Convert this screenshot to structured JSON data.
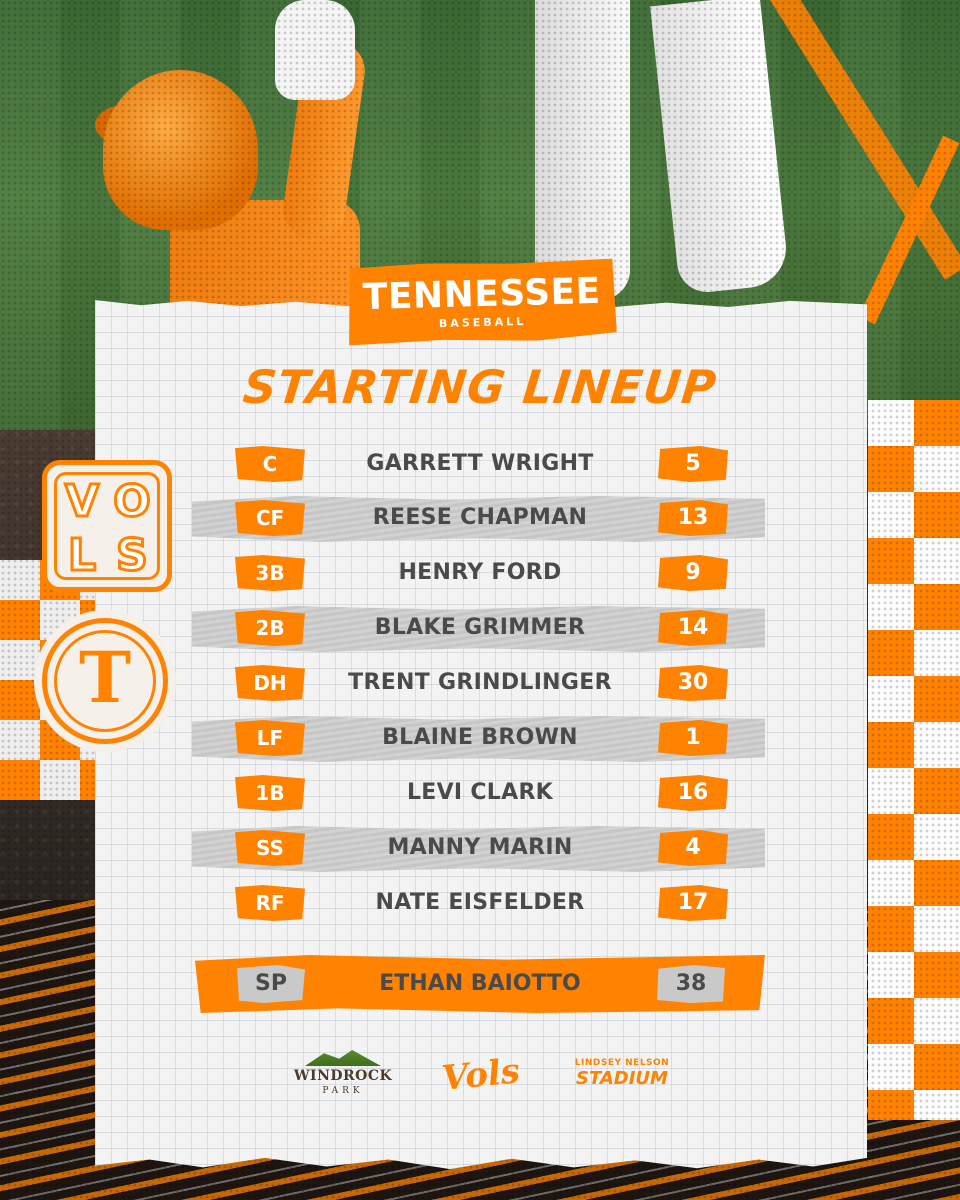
{
  "brand": {
    "title": "TENNESSEE",
    "subtitle": "BASEBALL"
  },
  "headline": "STARTING LINEUP",
  "badges": {
    "vols_letters": [
      "V",
      "O",
      "L",
      "S"
    ],
    "t_letter": "T"
  },
  "lineup": [
    {
      "pos": "C",
      "name": "GARRETT WRIGHT",
      "number": "5"
    },
    {
      "pos": "CF",
      "name": "REESE CHAPMAN",
      "number": "13"
    },
    {
      "pos": "3B",
      "name": "HENRY FORD",
      "number": "9"
    },
    {
      "pos": "2B",
      "name": "BLAKE GRIMMER",
      "number": "14"
    },
    {
      "pos": "DH",
      "name": "TRENT GRINDLINGER",
      "number": "30"
    },
    {
      "pos": "LF",
      "name": "BLAINE BROWN",
      "number": "1"
    },
    {
      "pos": "1B",
      "name": "LEVI CLARK",
      "number": "16"
    },
    {
      "pos": "SS",
      "name": "MANNY MARIN",
      "number": "4"
    },
    {
      "pos": "RF",
      "name": "NATE EISFELDER",
      "number": "17"
    }
  ],
  "starting_pitcher": {
    "pos": "SP",
    "name": "ETHAN BAIOTTO",
    "number": "38"
  },
  "sponsors": {
    "windrock": {
      "line1": "WINDROCK",
      "line2": "PARK"
    },
    "vols": "Vols",
    "stadium": {
      "line1": "LINDSEY NELSON",
      "line2": "STADIUM"
    }
  },
  "colors": {
    "accent": "#ff8200",
    "text": "#4a4a4a",
    "band": "#c9c9c9",
    "paper": "#f3f3f3"
  }
}
